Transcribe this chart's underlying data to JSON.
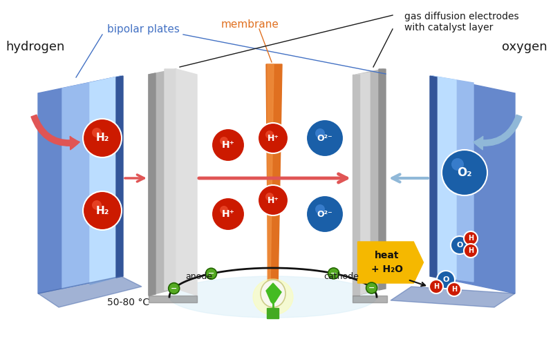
{
  "bg_color": "#ffffff",
  "hydrogen_label": "hydrogen",
  "oxygen_label": "oxygen",
  "bipolar_plates_label": "bipolar plates",
  "membrane_label": "membrane",
  "gas_diffusion_label": "gas diffusion electrodes\nwith catalyst layer",
  "anode_label": "anode",
  "cathode_label": "cathode",
  "temp_label": "50-80 °C",
  "heat_label": "heat\n+ H₂O",
  "red_ball_color": "#cc1a00",
  "blue_ball_color": "#1a5fa8",
  "green_ball_color": "#55aa22",
  "arrow_red_color": "#e05555",
  "arrow_blue_color": "#90b8d8",
  "yellow_hex_color": "#f5b800",
  "label_blue": "#4472c4",
  "label_orange": "#e07020",
  "label_black": "#1a1a1a"
}
